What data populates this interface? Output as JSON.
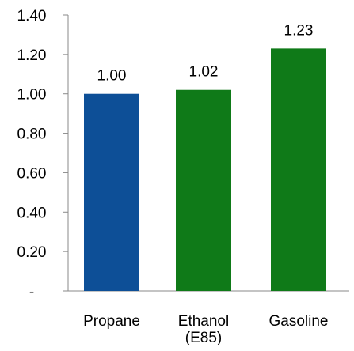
{
  "chart_data": {
    "type": "bar",
    "categories": [
      "Propane",
      "Ethanol (E85)",
      "Gasoline"
    ],
    "category_label_lines": [
      [
        "Propane"
      ],
      [
        "Ethanol",
        "(E85)"
      ],
      [
        "Gasoline"
      ]
    ],
    "values": [
      1.0,
      1.02,
      1.23
    ],
    "data_labels": [
      "1.00",
      "1.02",
      "1.23"
    ],
    "bar_colors": [
      "#0d4f97",
      "#0f7a18",
      "#0f7a18"
    ],
    "ylim": [
      0,
      1.4
    ],
    "y_ticks": [
      0,
      0.2,
      0.4,
      0.6,
      0.8,
      1.0,
      1.2,
      1.4
    ],
    "y_tick_labels": [
      "-",
      "0.20",
      "0.40",
      "0.60",
      "0.80",
      "1.00",
      "1.20",
      "1.40"
    ],
    "grid": false,
    "legend": "none",
    "title": "",
    "xlabel": "",
    "ylabel": ""
  }
}
